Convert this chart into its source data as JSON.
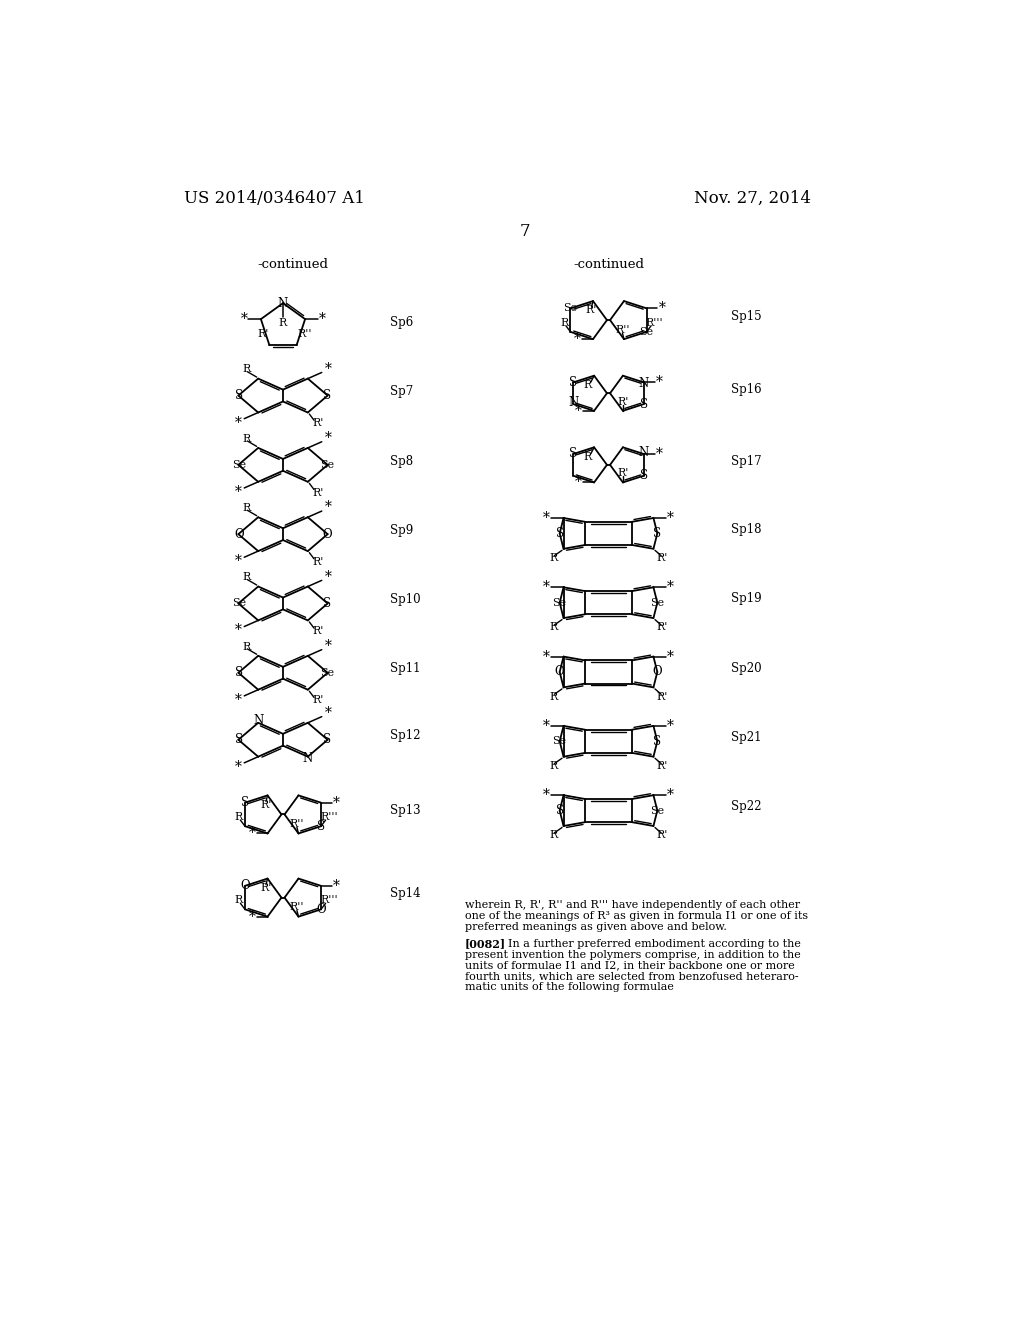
{
  "title_left": "US 2014/0346407 A1",
  "title_right": "Nov. 27, 2014",
  "page_number": "7",
  "background_color": "#ffffff"
}
